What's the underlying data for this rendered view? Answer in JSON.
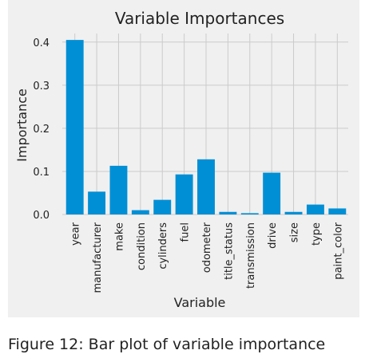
{
  "chart_data": {
    "type": "bar",
    "title": "Variable Importances",
    "xlabel": "Variable",
    "ylabel": "Importance",
    "categories": [
      "year",
      "manufacturer",
      "make",
      "condition",
      "cylinders",
      "fuel",
      "odometer",
      "title_status",
      "transmission",
      "drive",
      "size",
      "type",
      "paint_color"
    ],
    "values": [
      0.405,
      0.053,
      0.113,
      0.01,
      0.034,
      0.093,
      0.128,
      0.006,
      0.003,
      0.097,
      0.006,
      0.023,
      0.014
    ],
    "yticks": [
      "0.0",
      "0.1",
      "0.2",
      "0.3",
      "0.4"
    ],
    "ylim": [
      0,
      0.42
    ],
    "grid": true,
    "bar_color": "#008fd5",
    "background_color": "#f0f0f0"
  },
  "caption": "Figure 12: Bar plot of variable importance"
}
